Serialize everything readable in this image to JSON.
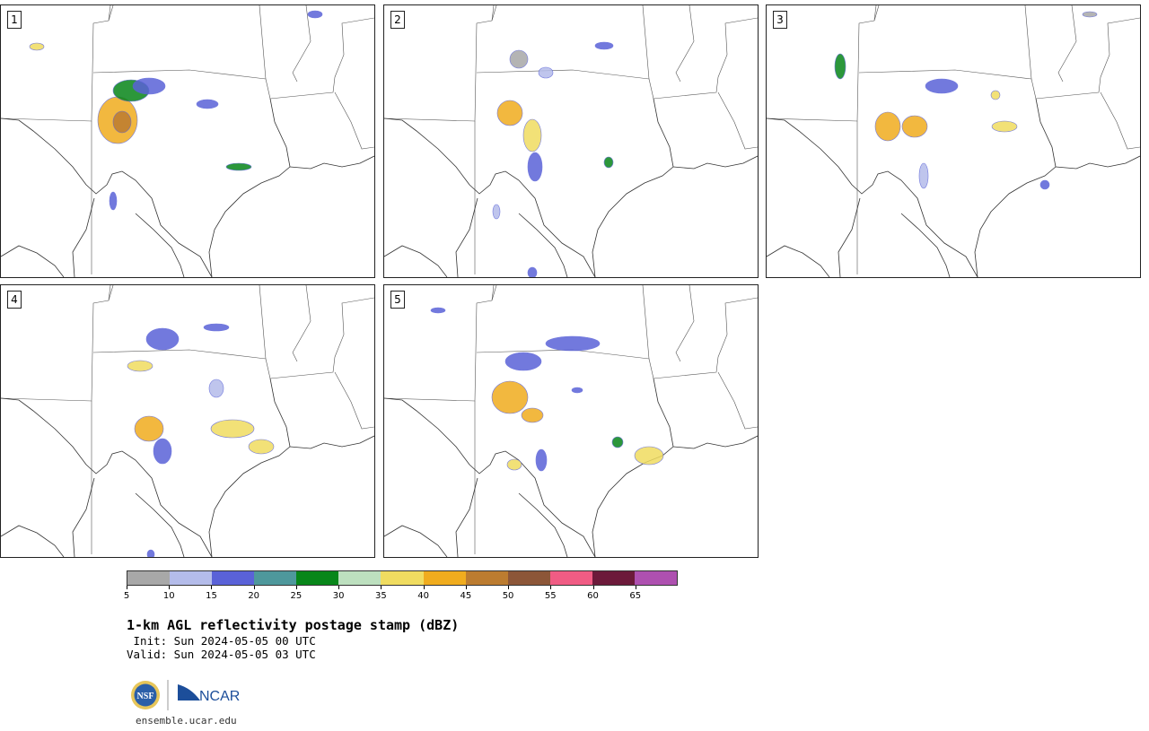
{
  "panels": [
    {
      "label": "1"
    },
    {
      "label": "2"
    },
    {
      "label": "3"
    },
    {
      "label": "4"
    },
    {
      "label": "5"
    }
  ],
  "colorbar": {
    "colors": [
      "#a8a8a8",
      "#b4bcea",
      "#5a62d8",
      "#4e989c",
      "#08861a",
      "#bde0bf",
      "#f0dc60",
      "#f0ac1e",
      "#bc7c30",
      "#8c5638",
      "#f05c84",
      "#6c1a3a",
      "#ae50b0"
    ],
    "ticks": [
      "5",
      "10",
      "15",
      "20",
      "25",
      "30",
      "35",
      "40",
      "45",
      "50",
      "55",
      "60",
      "65"
    ]
  },
  "title": "1-km AGL reflectivity postage stamp (dBZ)",
  "init_line": " Init: Sun 2024-05-05 00 UTC",
  "valid_line": "Valid: Sun 2024-05-05 03 UTC",
  "logo": {
    "nsf": "NSF",
    "ncar": "NCAR"
  },
  "url": "ensemble.ucar.edu"
}
